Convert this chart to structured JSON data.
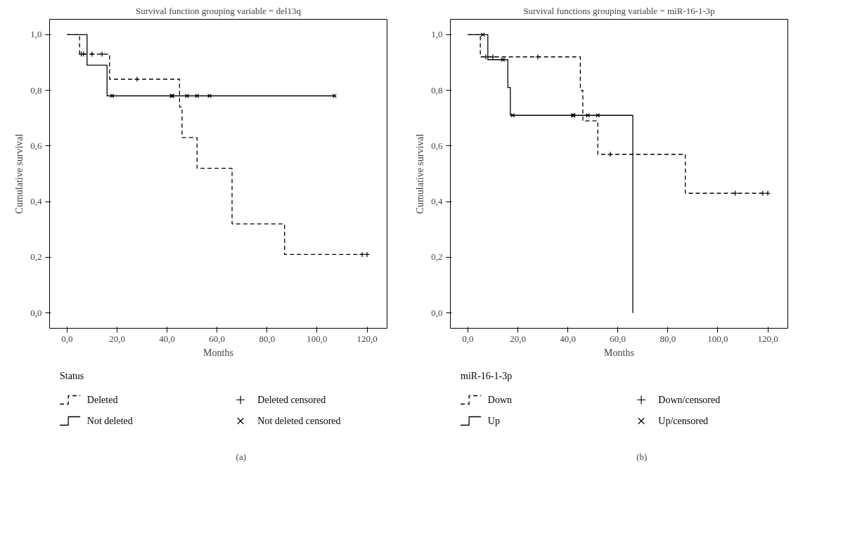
{
  "chart_data": [
    {
      "type": "step",
      "title": "Survival function grouping variable = del13q",
      "xlabel": "Months",
      "ylabel": "Cumulative survival",
      "legend_title": "Status",
      "annotations": [
        "(a)"
      ],
      "legend": "bottom",
      "grid": false,
      "xlim": [
        -7,
        128
      ],
      "ylim": [
        -0.055,
        1.055
      ],
      "xticks": [
        {
          "value": 0,
          "label": "0,0"
        },
        {
          "value": 20,
          "label": "20,0"
        },
        {
          "value": 40,
          "label": "40,0"
        },
        {
          "value": 60,
          "label": "60,0"
        },
        {
          "value": 80,
          "label": "80,0"
        },
        {
          "value": 100,
          "label": "100,0"
        },
        {
          "value": 120,
          "label": "120,0"
        }
      ],
      "yticks": [
        {
          "value": 0,
          "label": "0,0"
        },
        {
          "value": 0.2,
          "label": "0,2"
        },
        {
          "value": 0.4,
          "label": "0,4"
        },
        {
          "value": 0.6,
          "label": "0,6"
        },
        {
          "value": 0.8,
          "label": "0,8"
        },
        {
          "value": 1,
          "label": "1,0"
        }
      ],
      "series": [
        {
          "name": "Deleted",
          "color": "#000000",
          "type": "step",
          "line_style": "dashed",
          "marker": "none",
          "x": [
            0,
            5,
            17,
            45,
            46,
            52,
            66,
            87,
            120
          ],
          "values": [
            1,
            0.93,
            0.84,
            0.74,
            0.63,
            0.52,
            0.32,
            0.21,
            0.21
          ]
        },
        {
          "name": "Deleted censored",
          "color": "#000000",
          "type": "scatter",
          "marker": "cross",
          "x": [
            5.7,
            6.6,
            10,
            14,
            28,
            118,
            120
          ],
          "values": [
            0.93,
            0.93,
            0.93,
            0.93,
            0.84,
            0.21,
            0.21
          ]
        },
        {
          "name": "Not deleted",
          "color": "#000000",
          "type": "step",
          "line_style": "solid",
          "marker": "none",
          "x": [
            0,
            8,
            16,
            107
          ],
          "values": [
            1,
            0.89,
            0.78,
            0.78
          ]
        },
        {
          "name": "Not deleted censored",
          "color": "#000000",
          "type": "scatter",
          "marker": "x",
          "x": [
            18,
            41.8,
            42.1,
            48,
            52,
            57,
            107
          ],
          "values": [
            0.78,
            0.78,
            0.78,
            0.78,
            0.78,
            0.78,
            0.78
          ]
        }
      ]
    },
    {
      "type": "step",
      "title": "Survival functions grouping variable = miR-16-1-3p",
      "xlabel": "Months",
      "ylabel": "Cumulative survival",
      "legend_title": "miR-16-1-3p",
      "annotations": [
        "(b)"
      ],
      "legend": "bottom",
      "grid": false,
      "xlim": [
        -7,
        128
      ],
      "ylim": [
        -0.055,
        1.055
      ],
      "xticks": [
        {
          "value": 0,
          "label": "0,0"
        },
        {
          "value": 20,
          "label": "20,0"
        },
        {
          "value": 40,
          "label": "40,0"
        },
        {
          "value": 60,
          "label": "60,0"
        },
        {
          "value": 80,
          "label": "80,0"
        },
        {
          "value": 100,
          "label": "100,0"
        },
        {
          "value": 120,
          "label": "120,0"
        }
      ],
      "yticks": [
        {
          "value": 0,
          "label": "0,0"
        },
        {
          "value": 0.2,
          "label": "0,2"
        },
        {
          "value": 0.4,
          "label": "0,4"
        },
        {
          "value": 0.6,
          "label": "0,6"
        },
        {
          "value": 0.8,
          "label": "0,8"
        },
        {
          "value": 1,
          "label": "1,0"
        }
      ],
      "series": [
        {
          "name": "Down",
          "color": "#000000",
          "type": "step",
          "line_style": "dashed",
          "marker": "none",
          "x": [
            0,
            5,
            45,
            46,
            52,
            87,
            120
          ],
          "values": [
            1,
            0.92,
            0.8,
            0.69,
            0.57,
            0.43,
            0.43
          ]
        },
        {
          "name": "Down/censored",
          "color": "#000000",
          "type": "scatter",
          "marker": "cross",
          "x": [
            7.2,
            10,
            28,
            57,
            107,
            118,
            120
          ],
          "values": [
            0.92,
            0.92,
            0.92,
            0.57,
            0.43,
            0.43,
            0.43
          ]
        },
        {
          "name": "Up",
          "color": "#000000",
          "type": "step",
          "line_style": "solid",
          "marker": "none",
          "x": [
            0,
            8,
            16,
            17,
            66,
            66
          ],
          "values": [
            1,
            0.91,
            0.81,
            0.71,
            0.71,
            0
          ]
        },
        {
          "name": "Up/censored",
          "color": "#000000",
          "type": "scatter",
          "marker": "x",
          "x": [
            6,
            14,
            18,
            42,
            42.3,
            48,
            52
          ],
          "values": [
            1,
            0.91,
            0.71,
            0.71,
            0.71,
            0.71,
            0.71
          ]
        }
      ]
    }
  ]
}
